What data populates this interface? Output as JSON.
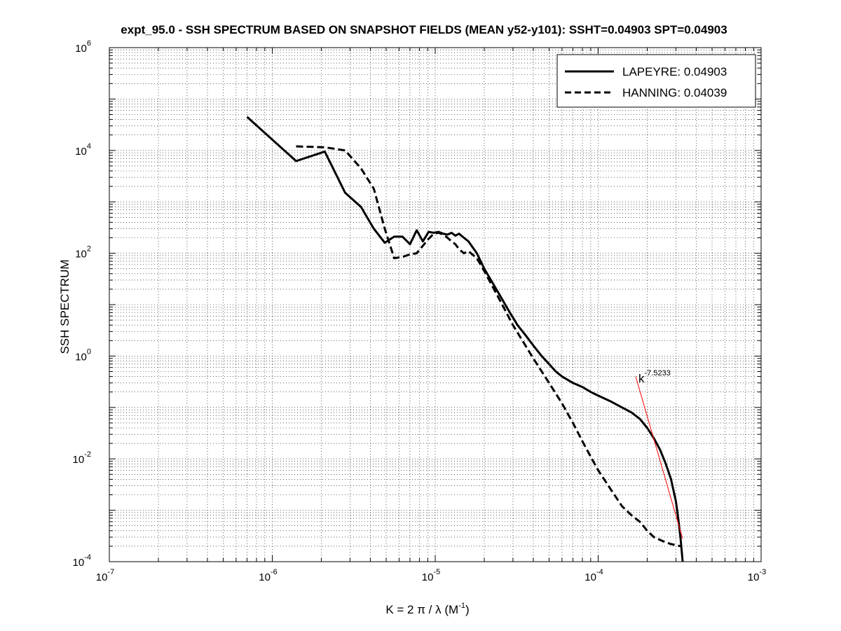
{
  "chart_data": {
    "type": "line",
    "title": "expt_95.0 - SSH SPECTRUM BASED ON SNAPSHOT FIELDS (MEAN y52-y101): SSHT=0.04903 SPT=0.04903",
    "xlabel": "K = 2 π / λ  (M",
    "xlabel_exp": "-1",
    "xlabel_tail": ")",
    "ylabel": "SSH SPECTRUM",
    "x_scale": "log",
    "y_scale": "log",
    "xlim": [
      1e-07,
      0.001
    ],
    "ylim": [
      0.0001,
      1000000.0
    ],
    "grid": "on (dotted, major and minor)",
    "legend_position": "top-right",
    "x_ticks": [
      {
        "base": "10",
        "exp": "-7"
      },
      {
        "base": "10",
        "exp": "-6"
      },
      {
        "base": "10",
        "exp": "-5"
      },
      {
        "base": "10",
        "exp": "-4"
      },
      {
        "base": "10",
        "exp": "-3"
      }
    ],
    "y_ticks": [
      {
        "base": "10",
        "exp": "-4"
      },
      {
        "base": "10",
        "exp": "-2"
      },
      {
        "base": "10",
        "exp": "0"
      },
      {
        "base": "10",
        "exp": "2"
      },
      {
        "base": "10",
        "exp": "4"
      },
      {
        "base": "10",
        "exp": "6"
      }
    ],
    "series": [
      {
        "name": "LAPEYRE: 0.04903",
        "style": "solid",
        "color": "#000000",
        "x": [
          7e-07,
          1.4e-06,
          2.1e-06,
          2.8e-06,
          3.5e-06,
          4.2e-06,
          4.9e-06,
          5.6e-06,
          6.3e-06,
          7e-06,
          7.7e-06,
          8.4e-06,
          9.1e-06,
          9.8e-06,
          1.05e-05,
          1.12e-05,
          1.19e-05,
          1.26e-05,
          1.33e-05,
          1.4e-05,
          1.5e-05,
          1.6e-05,
          1.8e-05,
          2e-05,
          2.2e-05,
          2.5e-05,
          2.8e-05,
          3.2e-05,
          3.6e-05,
          4e-05,
          4.5e-05,
          5e-05,
          5.5e-05,
          6e-05,
          7e-05,
          8e-05,
          9e-05,
          0.0001,
          0.00012,
          0.00014,
          0.00016,
          0.00018,
          0.0002,
          0.00022,
          0.00024,
          0.00026,
          0.00028,
          0.0003,
          0.00031,
          0.00032,
          0.00033
        ],
        "y": [
          45000,
          6200,
          9500,
          1500,
          800,
          300,
          160,
          210,
          210,
          150,
          280,
          170,
          260,
          250,
          260,
          240,
          230,
          250,
          220,
          240,
          200,
          170,
          100,
          50,
          30,
          15,
          8,
          4,
          2.5,
          1.6,
          1.0,
          0.7,
          0.5,
          0.4,
          0.3,
          0.25,
          0.2,
          0.17,
          0.13,
          0.1,
          0.08,
          0.06,
          0.04,
          0.025,
          0.015,
          0.008,
          0.004,
          0.0015,
          0.0007,
          0.0003,
          0.0001
        ]
      },
      {
        "name": "HANNING: 0.04039",
        "style": "dashed",
        "color": "#000000",
        "x": [
          1.4e-06,
          2.1e-06,
          2.8e-06,
          3.5e-06,
          4.2e-06,
          4.9e-06,
          5.6e-06,
          6.3e-06,
          7e-06,
          7.7e-06,
          8.4e-06,
          9.1e-06,
          9.8e-06,
          1.05e-05,
          1.12e-05,
          1.19e-05,
          1.26e-05,
          1.33e-05,
          1.4e-05,
          1.5e-05,
          1.6e-05,
          1.8e-05,
          2e-05,
          2.5e-05,
          3e-05,
          3.5e-05,
          4e-05,
          5e-05,
          6e-05,
          7e-05,
          8e-05,
          9e-05,
          0.0001,
          0.00012,
          0.00014,
          0.00016,
          0.00018,
          0.0002,
          0.00022,
          0.00025,
          0.00028,
          0.0003,
          0.00032
        ],
        "y": [
          12000,
          11500,
          10000,
          4500,
          1800,
          300,
          80,
          85,
          95,
          100,
          140,
          190,
          240,
          250,
          230,
          200,
          170,
          150,
          120,
          100,
          110,
          80,
          45,
          12,
          4,
          1.8,
          0.9,
          0.3,
          0.12,
          0.05,
          0.022,
          0.011,
          0.006,
          0.0025,
          0.0012,
          0.0008,
          0.0006,
          0.0004,
          0.0003,
          0.00025,
          0.00022,
          0.00021,
          0.0002
        ]
      }
    ],
    "fit_line": {
      "color": "#ff0000",
      "slope": -7.5233,
      "x": [
        0.00017,
        0.00033
      ],
      "y": [
        0.4,
        0.00028
      ],
      "label_base": "k",
      "label_exp": "-7.5233"
    }
  }
}
